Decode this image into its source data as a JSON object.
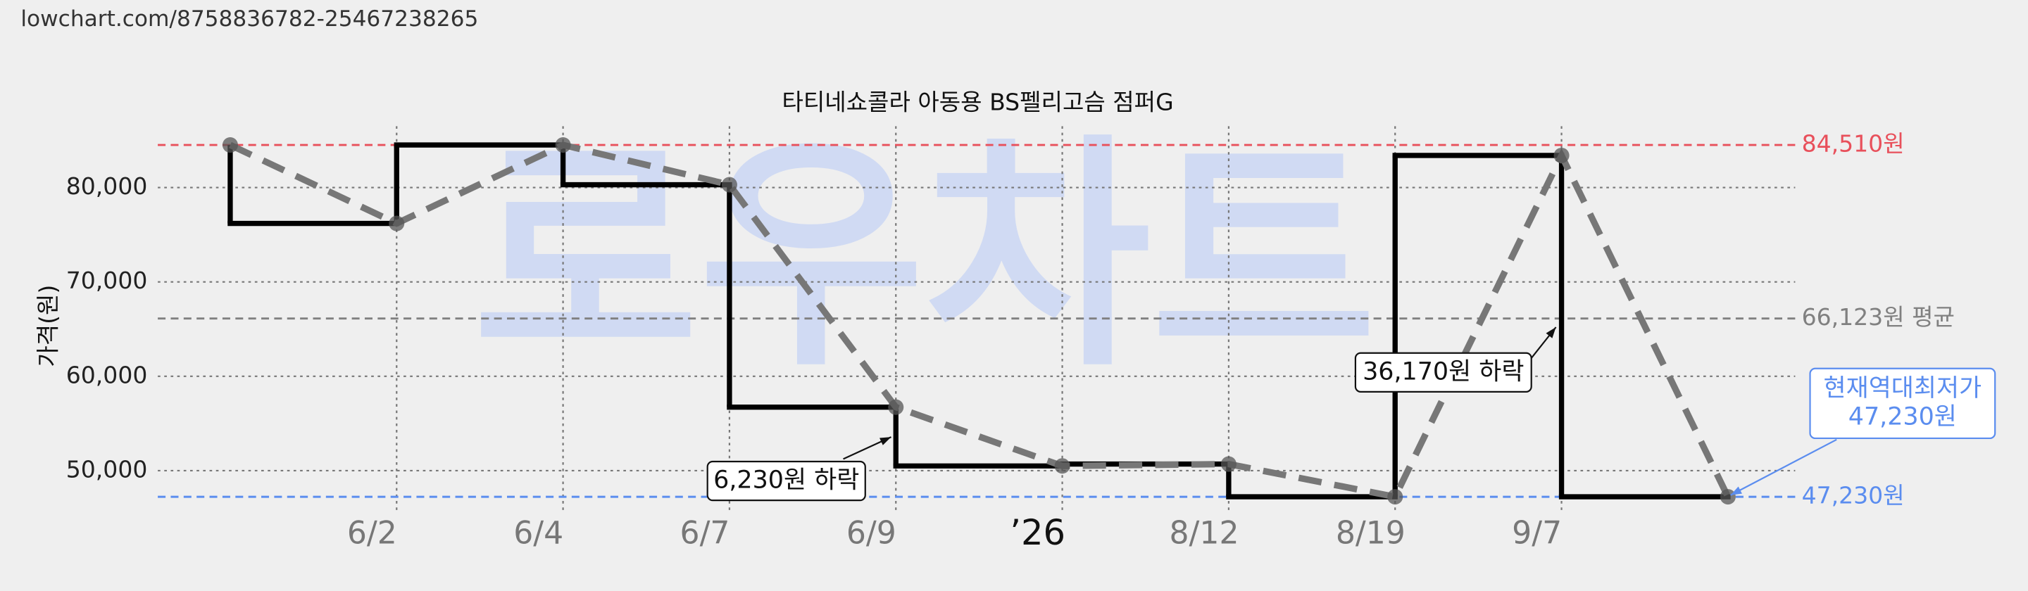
{
  "source_url": "lowchart.com/8758836782-25467238265",
  "watermark": "로우차트",
  "chart_data": {
    "type": "line",
    "title": "타티네쇼콜라 아동용 BS펠리고슴 점퍼G",
    "y_label": "가격(원)",
    "categories": [
      null,
      "6/2",
      "6/4",
      "6/7",
      "6/9",
      "’26",
      "8/12",
      "8/19",
      "9/7",
      null
    ],
    "series": [
      {
        "color": "#777777",
        "values": [
          84510,
          76200,
          84510,
          80300,
          56730,
          50500,
          50700,
          47230,
          83400,
          47230
        ]
      }
    ],
    "step_color": "#000000",
    "ylim": [
      45500,
      86500
    ],
    "yticks": [
      {
        "value": 50000,
        "label": "50,000"
      },
      {
        "value": 60000,
        "label": "60,000"
      },
      {
        "value": 70000,
        "label": "70,000"
      },
      {
        "value": 80000,
        "label": "80,000"
      }
    ],
    "grid": true,
    "reference_lines": [
      {
        "value": 84510,
        "label": "84,510원",
        "color": "#e8505b"
      },
      {
        "value": 66123,
        "label": "66,123원 평균",
        "color": "#808080"
      },
      {
        "value": 47230,
        "label": "47,230원",
        "color": "#5b8def"
      }
    ],
    "annotations": [
      {
        "text": "6,230원 하락"
      },
      {
        "text": "36,170원 하락"
      },
      {
        "text": [
          "현재역대최저가",
          "47,230원"
        ],
        "color": "#5b8def"
      }
    ]
  }
}
